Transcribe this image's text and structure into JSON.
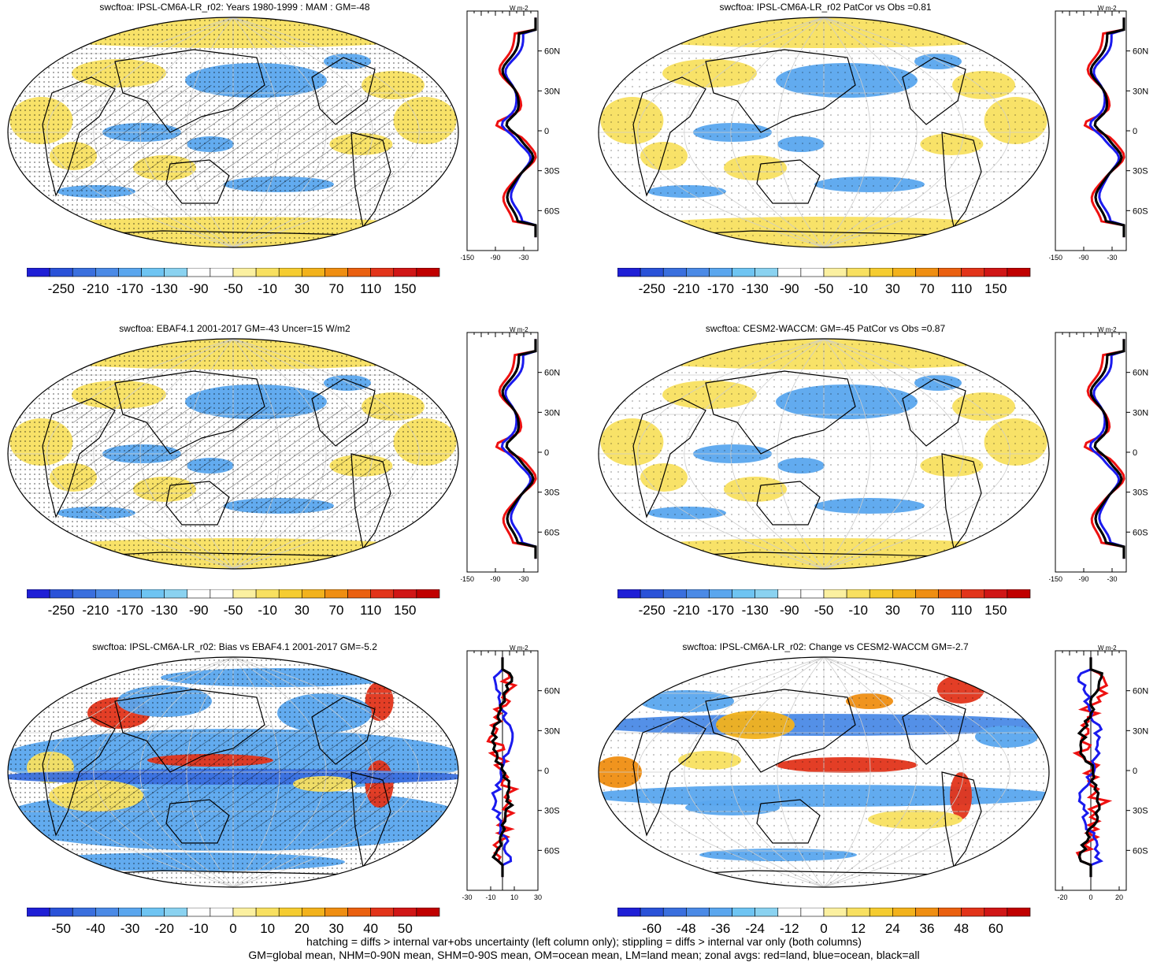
{
  "panels": [
    {
      "title": "swcftoa: IPSL-CM6A-LR_r02: Years 1980-1999 : MAM : GM=-48",
      "kind": "abs",
      "hatch": true,
      "stipple": "heavy",
      "colorbar_labels": [
        "-250",
        "-210",
        "-170",
        "-130",
        "-90",
        "-50",
        "-10",
        "30",
        "70",
        "110",
        "150"
      ],
      "profile": {
        "unit": "W m-2",
        "x_ticks": [
          "-150",
          "-90",
          "-30"
        ],
        "xmin": -150,
        "xmax": 0,
        "lat_labels": [
          "60N",
          "30N",
          "0",
          "30S",
          "60S"
        ]
      }
    },
    {
      "title": "swcftoa: IPSL-CM6A-LR_r02 PatCor vs Obs =0.81",
      "kind": "abs",
      "hatch": false,
      "stipple": "light",
      "colorbar_labels": [
        "-250",
        "-210",
        "-170",
        "-130",
        "-90",
        "-50",
        "-10",
        "30",
        "70",
        "110",
        "150"
      ],
      "profile": {
        "unit": "W m-2",
        "x_ticks": [
          "-150",
          "-90",
          "-30"
        ],
        "xmin": -150,
        "xmax": 0,
        "lat_labels": [
          "60N",
          "30N",
          "0",
          "30S",
          "60S"
        ]
      }
    },
    {
      "title": "swcftoa: EBAF4.1 2001-2017 GM=-43 Uncer=15 W/m2",
      "kind": "abs",
      "hatch": true,
      "stipple": "heavy",
      "colorbar_labels": [
        "-250",
        "-210",
        "-170",
        "-130",
        "-90",
        "-50",
        "-10",
        "30",
        "70",
        "110",
        "150"
      ],
      "profile": {
        "unit": "W m-2",
        "x_ticks": [
          "-150",
          "-90",
          "-30"
        ],
        "xmin": -150,
        "xmax": 0,
        "lat_labels": [
          "60N",
          "30N",
          "0",
          "30S",
          "60S"
        ]
      }
    },
    {
      "title": "swcftoa: CESM2-WACCM: GM=-45 PatCor vs Obs =0.87",
      "kind": "abs",
      "hatch": false,
      "stipple": "light",
      "colorbar_labels": [
        "-250",
        "-210",
        "-170",
        "-130",
        "-90",
        "-50",
        "-10",
        "30",
        "70",
        "110",
        "150"
      ],
      "profile": {
        "unit": "W m-2",
        "x_ticks": [
          "-150",
          "-90",
          "-30"
        ],
        "xmin": -150,
        "xmax": 0,
        "lat_labels": [
          "60N",
          "30N",
          "0",
          "30S",
          "60S"
        ]
      }
    },
    {
      "title": "swcftoa: IPSL-CM6A-LR_r02: Bias vs EBAF4.1 2001-2017 GM=-5.2",
      "kind": "bias",
      "hatch": true,
      "stipple": "heavy",
      "colorbar_labels": [
        "-50",
        "-40",
        "-30",
        "-20",
        "-10",
        "0",
        "10",
        "20",
        "30",
        "40",
        "50"
      ],
      "profile": {
        "unit": "W m-2",
        "x_ticks": [
          "-30",
          "-10",
          "10",
          "30"
        ],
        "xmin": -30,
        "xmax": 30,
        "lat_labels": [
          "60N",
          "30N",
          "0",
          "30S",
          "60S"
        ]
      }
    },
    {
      "title": "swcftoa: IPSL-CM6A-LR_r02: Change vs CESM2-WACCM GM=-2.7",
      "kind": "change",
      "hatch": false,
      "stipple": "light",
      "colorbar_labels": [
        "-60",
        "-48",
        "-36",
        "-24",
        "-12",
        "0",
        "12",
        "24",
        "36",
        "48",
        "60"
      ],
      "profile": {
        "unit": "W m-2",
        "x_ticks": [
          "-20",
          "0",
          "20"
        ],
        "xmin": -25,
        "xmax": 25,
        "lat_labels": [
          "60N",
          "30N",
          "0",
          "30S",
          "60S"
        ]
      }
    }
  ],
  "colors": {
    "palette": [
      "#1f1fd6",
      "#2a52d8",
      "#3a6fde",
      "#4b8ae6",
      "#5aa6ee",
      "#6ec4f2",
      "#8ad2f0",
      "#ffffff",
      "#ffffff",
      "#fbf0a0",
      "#f8e060",
      "#f5cc30",
      "#f2b21c",
      "#ef8e12",
      "#ea6010",
      "#e2341a",
      "#d01616",
      "#c00000"
    ],
    "land_line": "red",
    "ocean_line": "blue",
    "all_line": "black"
  },
  "footer": {
    "line1": "hatching = diffs > internal var+obs uncertainty (left column only); stippling = diffs > internal var only (both columns)",
    "line2": "GM=global mean, NHM=0-90N mean, SHM=0-90S mean, OM=ocean mean, LM=land mean; zonal avgs: red=land, blue=ocean, black=all"
  }
}
